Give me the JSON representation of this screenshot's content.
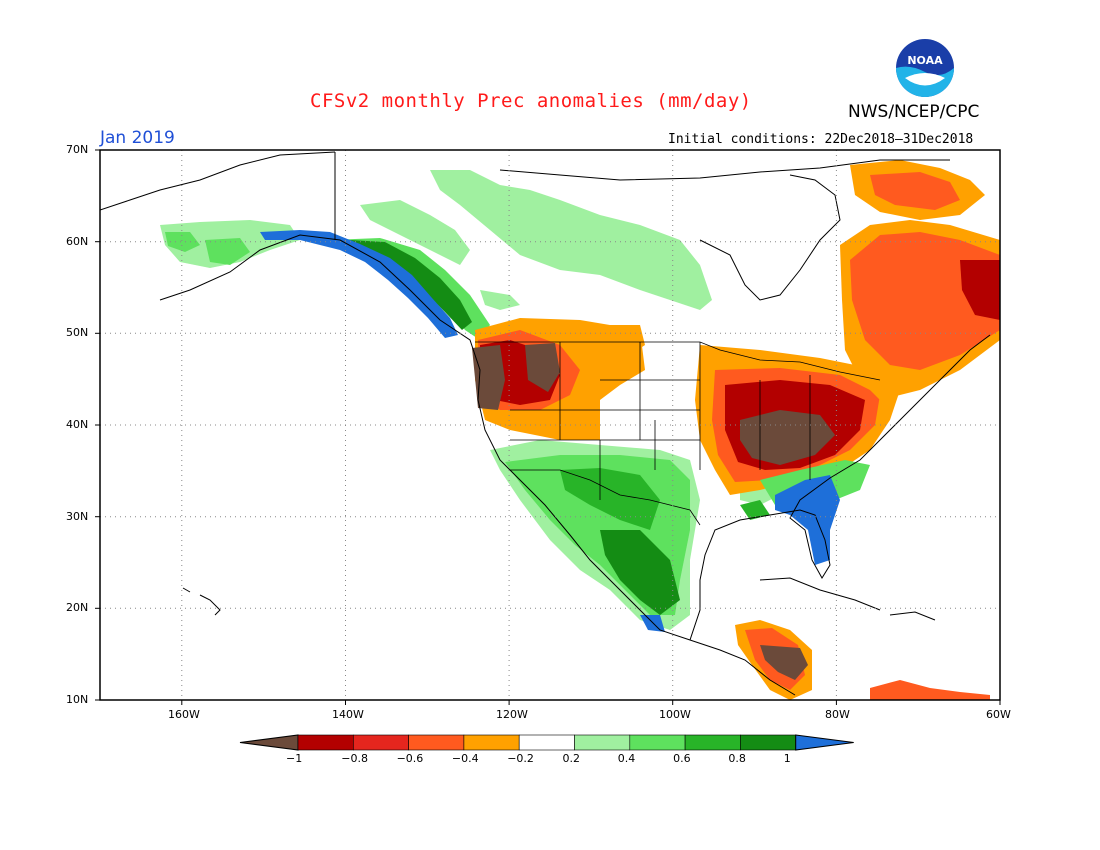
{
  "title": "CFSv2 monthly Prec anomalies (mm/day)",
  "month": "Jan 2019",
  "agency": "NWS/NCEP/CPC",
  "initial_conditions": "Initial conditions: 22Dec2018–31Dec2018",
  "logo": {
    "text": "NOAA",
    "icon": "noaa-logo"
  },
  "axes": {
    "lat_labels": [
      "70N",
      "60N",
      "50N",
      "40N",
      "30N",
      "20N",
      "10N"
    ],
    "lon_labels": [
      "160W",
      "140W",
      "120W",
      "100W",
      "80W",
      "60W"
    ]
  },
  "colorbar": {
    "labels": [
      "−1",
      "−0.8",
      "−0.6",
      "−0.4",
      "−0.2",
      "0.2",
      "0.4",
      "0.6",
      "0.8",
      "1"
    ],
    "colors": [
      "#6b4a3a",
      "#b30000",
      "#e5261e",
      "#ff5a1f",
      "#ffa100",
      "#ffffff",
      "#a0f0a0",
      "#5ee15e",
      "#28b428",
      "#148c14",
      "#1e6fd9"
    ]
  },
  "chart_data": {
    "type": "heatmap",
    "variable": "Prec anomalies (mm/day)",
    "lat_range": [
      10,
      70
    ],
    "lon_range": [
      -170,
      -60
    ],
    "regions": [
      {
        "name": "Pacific Northwest coast",
        "anomaly": -1.0
      },
      {
        "name": "Northern Rockies",
        "anomaly": -0.8
      },
      {
        "name": "Ohio Valley / Mid-South",
        "anomaly": -1.0
      },
      {
        "name": "Great Lakes / Northeast",
        "anomaly": -0.8
      },
      {
        "name": "Eastern Canada / Labrador",
        "anomaly": -0.6
      },
      {
        "name": "British Columbia coast / SE Alaska",
        "anomaly": 1.0
      },
      {
        "name": "Southwest US",
        "anomaly": 0.6
      },
      {
        "name": "Mexico Sierra Madre",
        "anomaly": 0.8
      },
      {
        "name": "Southeast US / Florida",
        "anomaly": 1.0
      },
      {
        "name": "Central Canada",
        "anomaly": 0.3
      },
      {
        "name": "Central America",
        "anomaly": -1.0
      }
    ]
  }
}
